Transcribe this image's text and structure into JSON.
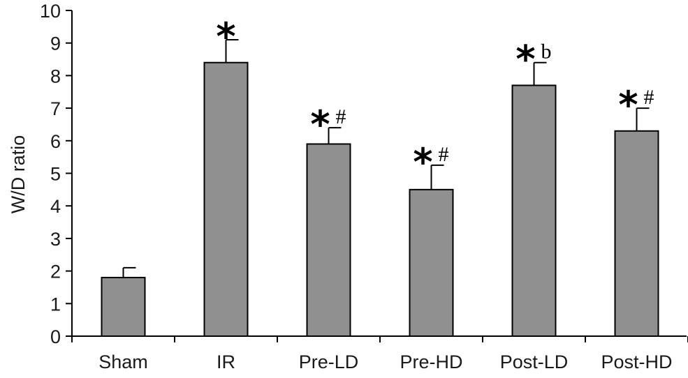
{
  "chart_data": {
    "type": "bar",
    "title": "",
    "xlabel": "",
    "ylabel": "W/D  ratio",
    "ylim": [
      0,
      10
    ],
    "yticks": [
      0,
      1,
      2,
      3,
      4,
      5,
      6,
      7,
      8,
      9,
      10
    ],
    "grid": false,
    "categories": [
      "Sham",
      "IR",
      "Pre-LD",
      "Pre-HD",
      "Post-LD",
      "Post-HD"
    ],
    "values": [
      1.8,
      8.4,
      5.9,
      4.5,
      7.7,
      6.3
    ],
    "errors": [
      0.3,
      0.7,
      0.5,
      0.75,
      0.7,
      0.7
    ],
    "annotations": [
      {
        "star": "",
        "suffix": ""
      },
      {
        "star": "*",
        "suffix": ""
      },
      {
        "star": "*",
        "suffix": "#"
      },
      {
        "star": "*",
        "suffix": "#"
      },
      {
        "star": "*",
        "suffix": "b"
      },
      {
        "star": "*",
        "suffix": "#"
      }
    ],
    "colors": {
      "bar": "#909090",
      "outline": "#000000"
    }
  }
}
